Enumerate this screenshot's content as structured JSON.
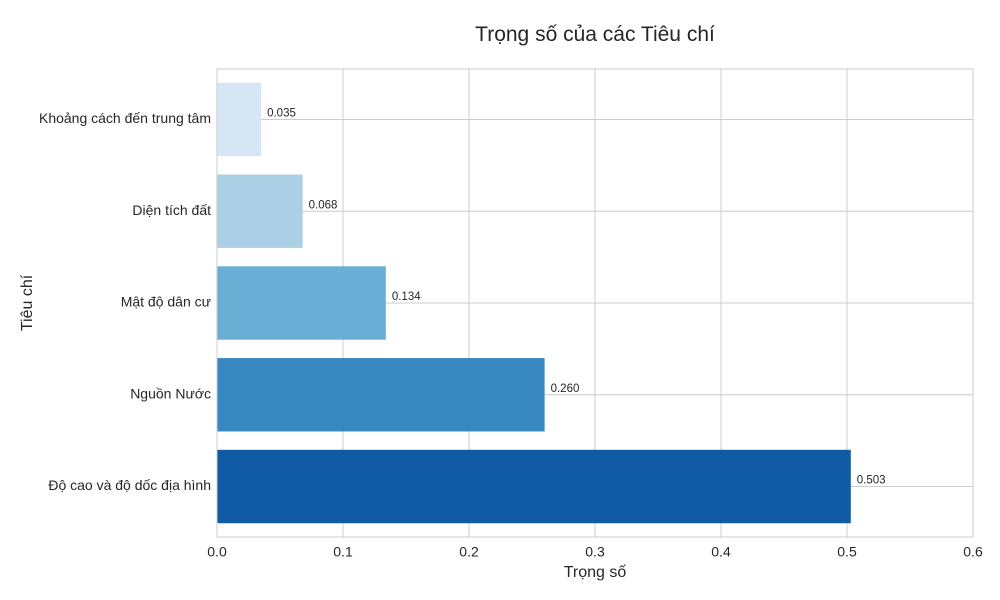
{
  "chart_data": {
    "type": "bar",
    "orientation": "horizontal",
    "title": "Trọng số của các Tiêu chí",
    "xlabel": "Trọng số",
    "ylabel": "Tiêu chí",
    "categories": [
      "Khoảng cách đến trung tâm",
      "Diện tích đất",
      "Mật độ dân cư",
      "Nguồn Nước",
      "Độ cao và độ dốc địa hình"
    ],
    "values": [
      0.035,
      0.068,
      0.134,
      0.26,
      0.503
    ],
    "value_labels": [
      "0.035",
      "0.068",
      "0.134",
      "0.260",
      "0.503"
    ],
    "colors": [
      "#d6e6f4",
      "#abd0e6",
      "#6aaed6",
      "#3787c0",
      "#105ba4"
    ],
    "xlim": [
      0,
      0.6
    ],
    "xticks": [
      0,
      0.1,
      0.2,
      0.3,
      0.4,
      0.5,
      0.6
    ],
    "xtick_labels": [
      "0.0",
      "0.1",
      "0.2",
      "0.3",
      "0.4",
      "0.5",
      "0.6"
    ],
    "grid": true
  }
}
